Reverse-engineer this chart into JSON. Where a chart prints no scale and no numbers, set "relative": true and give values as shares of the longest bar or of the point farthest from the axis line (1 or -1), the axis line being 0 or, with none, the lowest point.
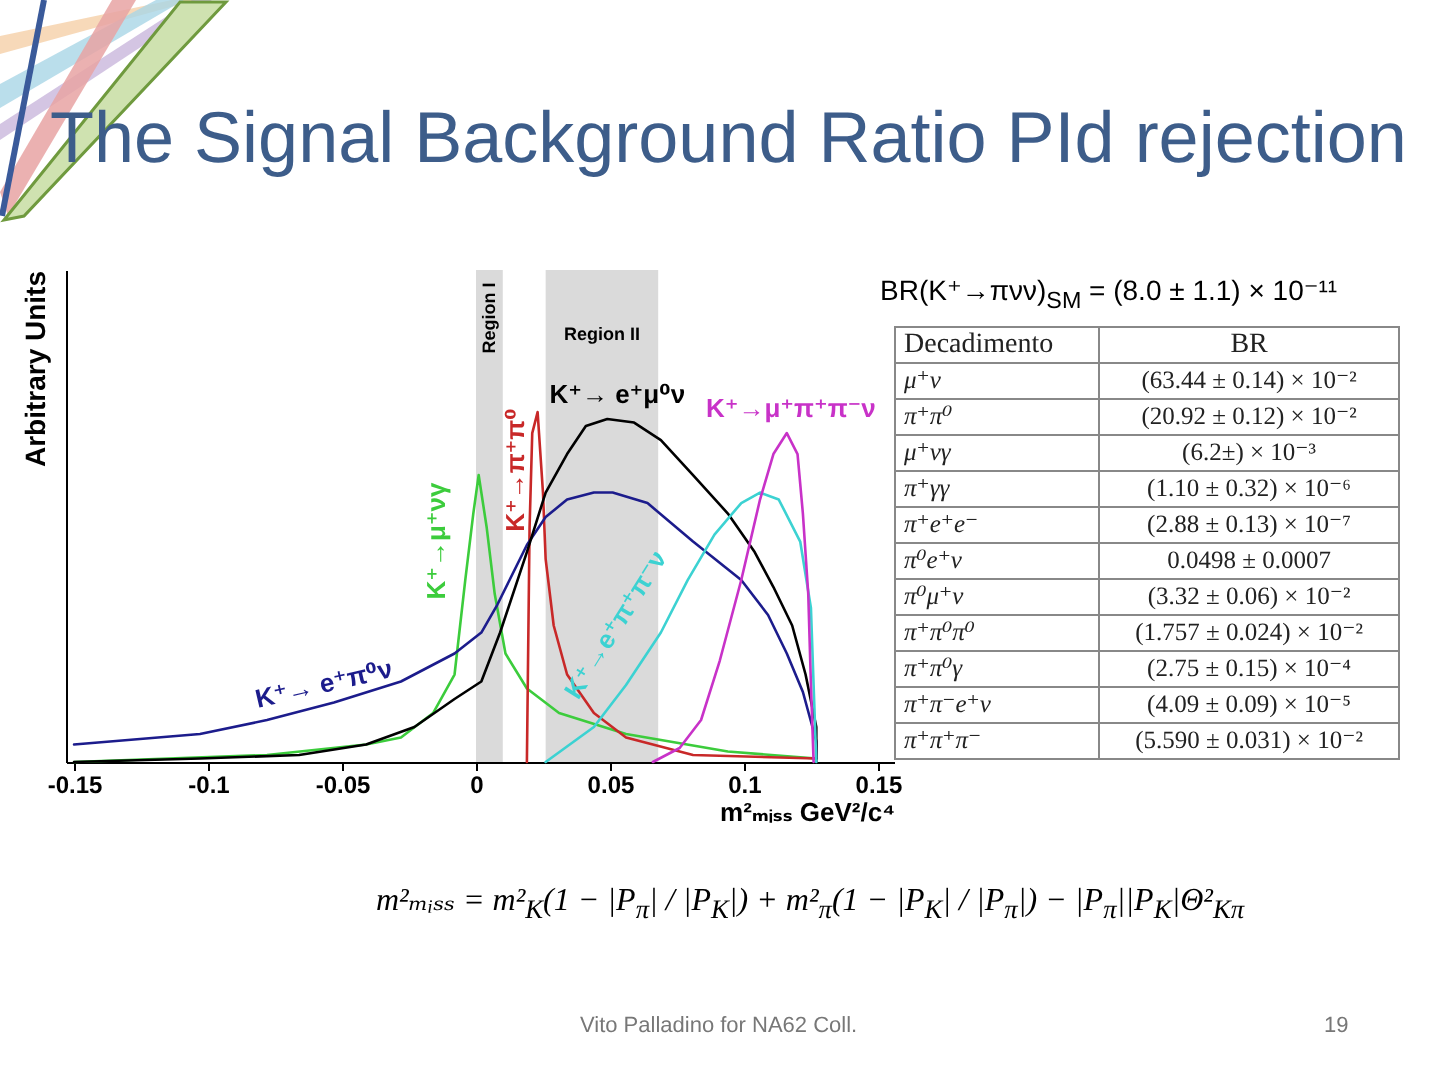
{
  "chart_data": [
    {
      "type": "line",
      "title": "The Signal Background Ratio PId rejection",
      "xlabel": "m²ₘᵢₛₛ GeV²/c⁴",
      "ylabel": "Arbitrary Units",
      "relative": true,
      "xlim": [
        -0.153,
        0.156
      ],
      "xticks": [
        -0.15,
        -0.1,
        -0.05,
        0,
        0.05,
        0.1,
        0.15
      ],
      "grid": false,
      "legend": false,
      "bands": [
        {
          "axis": "x",
          "from": 0,
          "to": 0.01,
          "label": "Region I",
          "color": "#dadada"
        },
        {
          "axis": "x",
          "from": 0.026,
          "to": 0.068,
          "label": "Region II",
          "color": "#dadada"
        }
      ],
      "series": [
        {
          "name": "K⁺→μ⁺νγ",
          "color": "#3ccc3c",
          "x": [
            -0.15,
            -0.078,
            -0.041,
            -0.028,
            -0.016,
            -0.008,
            -0.004,
            -0.001,
            0.001,
            0.004,
            0.007,
            0.011,
            0.019,
            0.031,
            0.056,
            0.094,
            0.127
          ],
          "values": [
            0,
            0.02,
            0.05,
            0.07,
            0.14,
            0.25,
            0.52,
            0.71,
            0.82,
            0.67,
            0.48,
            0.31,
            0.21,
            0.14,
            0.08,
            0.03,
            0.01
          ]
        },
        {
          "name": "K⁺→π⁺π⁰",
          "color": "#c82828",
          "x": [
            0.019,
            0.02,
            0.021,
            0.023,
            0.025,
            0.026,
            0.029,
            0.034,
            0.044,
            0.056,
            0.081,
            0.127
          ],
          "values": [
            0,
            0.67,
            0.94,
            1,
            0.77,
            0.58,
            0.39,
            0.25,
            0.14,
            0.07,
            0.02,
            0.01
          ]
        },
        {
          "name": "K⁺→ e⁺π⁰ν",
          "color": "#1c1c8c",
          "x": [
            -0.15,
            -0.103,
            -0.078,
            -0.053,
            -0.028,
            -0.008,
            0.002,
            0.008,
            0.019,
            0.026,
            0.034,
            0.044,
            0.051,
            0.064,
            0.081,
            0.099,
            0.109,
            0.116,
            0.122,
            0.127,
            0.127
          ],
          "values": [
            0.05,
            0.08,
            0.12,
            0.17,
            0.23,
            0.31,
            0.37,
            0.45,
            0.62,
            0.7,
            0.75,
            0.77,
            0.77,
            0.74,
            0.63,
            0.52,
            0.42,
            0.31,
            0.2,
            0.06,
            0.01
          ]
        },
        {
          "name": "K⁺→ e⁺μ⁰ν",
          "color": "#000000",
          "x": [
            -0.15,
            -0.103,
            -0.066,
            -0.041,
            -0.023,
            -0.008,
            0.002,
            0.009,
            0.019,
            0.026,
            0.034,
            0.041,
            0.049,
            0.059,
            0.069,
            0.081,
            0.094,
            0.104,
            0.111,
            0.118,
            0.123,
            0.127,
            0.127
          ],
          "values": [
            0,
            0.01,
            0.02,
            0.05,
            0.1,
            0.18,
            0.23,
            0.37,
            0.6,
            0.77,
            0.88,
            0.96,
            0.98,
            0.97,
            0.92,
            0.82,
            0.71,
            0.6,
            0.5,
            0.39,
            0.25,
            0.1,
            0
          ]
        },
        {
          "name": "K⁺→e⁺π⁺π⁻ν",
          "color": "#3cd2d2",
          "x": [
            0.026,
            0.044,
            0.056,
            0.069,
            0.079,
            0.089,
            0.099,
            0.106,
            0.113,
            0.121,
            0.125,
            0.126,
            0.127
          ],
          "values": [
            0,
            0.1,
            0.22,
            0.37,
            0.52,
            0.65,
            0.74,
            0.77,
            0.75,
            0.63,
            0.44,
            0.22,
            0
          ]
        },
        {
          "name": "K⁺→μ⁺π⁺π⁻ν",
          "color": "#c832c8",
          "x": [
            0.066,
            0.076,
            0.084,
            0.091,
            0.099,
            0.106,
            0.111,
            0.116,
            0.12,
            0.122,
            0.124,
            0.125,
            0.126
          ],
          "values": [
            0,
            0.04,
            0.12,
            0.29,
            0.52,
            0.75,
            0.88,
            0.94,
            0.88,
            0.71,
            0.48,
            0.22,
            0
          ]
        }
      ],
      "annotations": [
        "m²ₘᵢₛₛ = m²$_{K}$(1 − |P$_{π}$| / |P$_{K}$|) + m²$_{π}$(1 − |P$_{K}$| / |P$_{π}$|) − |P$_{π}$||P$_{K}$|Θ²$_{Kπ}$",
        "Vito Palladino for NA62 Coll.",
        "19"
      ]
    },
    {
      "type": "other",
      "title": "BR(K⁺→πνν)$_{SM}$ = (8.0 ± 1.1) × 10⁻¹¹",
      "annotations": [
        "Decadimento",
        "BR",
        "μ⁺ν",
        "(63.44 ± 0.14) × 10⁻²",
        "π⁺π⁰",
        "(20.92 ± 0.12) × 10⁻²",
        "μ⁺νγ",
        "(6.2±) × 10⁻³",
        "π⁺γγ",
        "(1.10 ± 0.32) × 10⁻⁶",
        "π⁺e⁺e⁻",
        "(2.88 ± 0.13) × 10⁻⁷",
        "π⁰e⁺ν",
        "0.0498 ± 0.0007",
        "π⁰μ⁺ν",
        "(3.32 ± 0.06) × 10⁻²",
        "π⁺π⁰π⁰",
        "(1.757 ± 0.024) × 10⁻²",
        "π⁺π⁰γ",
        "(2.75 ± 0.15) × 10⁻⁴",
        "π⁺π⁻e⁺ν",
        "(4.09 ± 0.09) × 10⁻⁵",
        "π⁺π⁺π⁻",
        "(5.590 ± 0.031) × 10⁻²"
      ]
    }
  ]
}
